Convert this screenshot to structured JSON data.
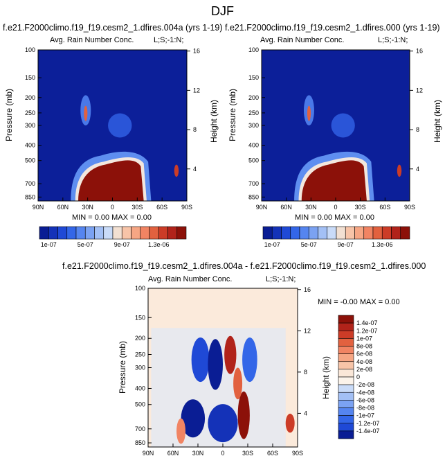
{
  "figure": {
    "title": "DJF"
  },
  "panels": [
    {
      "case": "f.e21.F2000climo.f19_f19.cesm2_1.dfires.004a (yrs 1-19)",
      "field": "Avg. Rain Number Conc.",
      "corner": "L;S;-1:N;",
      "min_max": "MIN =  0.00  MAX =  0.00",
      "ylabel": "Pressure (mb)",
      "ylabel_right": "Height (km)"
    },
    {
      "case": "f.e21.F2000climo.f19_f19.cesm2_1.dfires.000 (yrs 1-19)",
      "field": "Avg. Rain Number Conc.",
      "corner": "L;S;-1:N;",
      "min_max": "MIN =  0.00  MAX =  0.00",
      "ylabel": "Pressure (mb)",
      "ylabel_right": "Height (km)"
    },
    {
      "case": "f.e21.F2000climo.f19_f19.cesm2_1.dfires.004a - f.e21.F2000climo.f19_f19.cesm2_1.dfires.000",
      "field": "Avg. Rain Number Conc.",
      "corner": "L;S;-1:N;",
      "min_max": "MIN = -0.00  MAX =  0.00",
      "ylabel": "Pressure (mb)",
      "ylabel_right": "Height (km)"
    }
  ],
  "chart_data": [
    {
      "type": "heatmap",
      "title": "Avg. Rain Number Conc.",
      "xlabel": "",
      "ylabel": "Pressure (mb)",
      "ylabel_right": "Height (km)",
      "x_ticks": [
        "90N",
        "60N",
        "30N",
        "0",
        "30S",
        "60S",
        "90S"
      ],
      "x_range": [
        90,
        -90
      ],
      "y_ticks": [
        100,
        150,
        200,
        250,
        300,
        400,
        500,
        700,
        850
      ],
      "y_range": [
        100,
        900
      ],
      "y_scale": "log",
      "height_ticks": [
        16,
        12,
        8,
        4
      ],
      "colorbar_labels": [
        "1e-07",
        "5e-07",
        "9e-07",
        "1.3e-06"
      ],
      "colorbar_colors": [
        "#0a1d94",
        "#1432b8",
        "#1f49d6",
        "#3366e8",
        "#5585f0",
        "#7ba2f2",
        "#a3c0f5",
        "#c9dbf8",
        "#f2e0d2",
        "#f7c4a8",
        "#f6a684",
        "#f18463",
        "#e2613f",
        "#cc3c27",
        "#b1231a",
        "#8c1109"
      ],
      "min": 0.0,
      "max": 0.0
    },
    {
      "type": "heatmap",
      "title": "Avg. Rain Number Conc.",
      "xlabel": "",
      "ylabel": "Pressure (mb)",
      "ylabel_right": "Height (km)",
      "x_ticks": [
        "90N",
        "60N",
        "30N",
        "0",
        "30S",
        "60S",
        "90S"
      ],
      "x_range": [
        90,
        -90
      ],
      "y_ticks": [
        100,
        150,
        200,
        250,
        300,
        400,
        500,
        700,
        850
      ],
      "y_range": [
        100,
        900
      ],
      "y_scale": "log",
      "height_ticks": [
        16,
        12,
        8,
        4
      ],
      "colorbar_labels": [
        "1e-07",
        "5e-07",
        "9e-07",
        "1.3e-06"
      ],
      "colorbar_colors": [
        "#0a1d94",
        "#1432b8",
        "#1f49d6",
        "#3366e8",
        "#5585f0",
        "#7ba2f2",
        "#a3c0f5",
        "#c9dbf8",
        "#f2e0d2",
        "#f7c4a8",
        "#f6a684",
        "#f18463",
        "#e2613f",
        "#cc3c27",
        "#b1231a",
        "#8c1109"
      ],
      "min": 0.0,
      "max": 0.0
    },
    {
      "type": "heatmap",
      "title": "Avg. Rain Number Conc.",
      "xlabel": "",
      "ylabel": "Pressure (mb)",
      "ylabel_right": "Height (km)",
      "x_ticks": [
        "90N",
        "60N",
        "30N",
        "0",
        "30S",
        "60S",
        "90S"
      ],
      "x_range": [
        90,
        -90
      ],
      "y_ticks": [
        100,
        150,
        200,
        250,
        300,
        400,
        500,
        700,
        850
      ],
      "y_range": [
        100,
        900
      ],
      "y_scale": "log",
      "height_ticks": [
        16,
        12,
        8,
        4
      ],
      "colorbar_labels": [
        "1.4e-07",
        "1.2e-07",
        "1e-07",
        "8e-08",
        "6e-08",
        "4e-08",
        "2e-08",
        "0",
        "-2e-08",
        "-4e-08",
        "-6e-08",
        "-8e-08",
        "-1e-07",
        "-1.2e-07",
        "-1.4e-07"
      ],
      "colorbar_colors": [
        "#8c1109",
        "#b1231a",
        "#cc3c27",
        "#e2613f",
        "#f18463",
        "#f6a684",
        "#f7c4a8",
        "#fae7d8",
        "#fbf3ea",
        "#c9dbf8",
        "#a3c0f5",
        "#7ba2f2",
        "#5585f0",
        "#3366e8",
        "#1f49d6",
        "#0a1d94"
      ],
      "min": -0.0,
      "max": 0.0
    }
  ]
}
